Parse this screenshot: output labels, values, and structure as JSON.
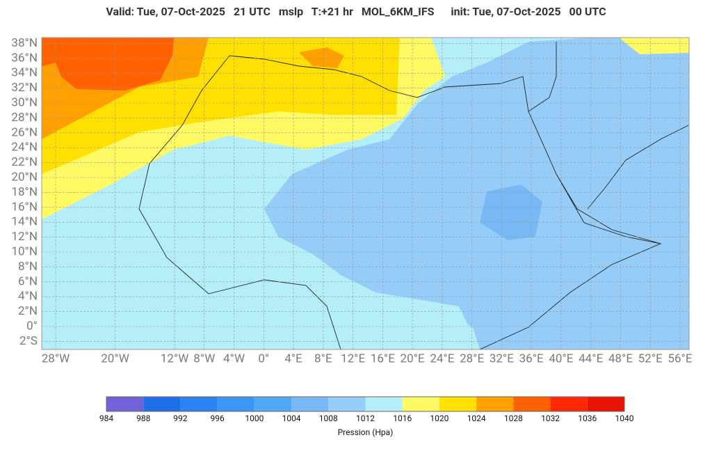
{
  "map": {
    "title": "Valid: Tue, 07-Oct-2025   21 UTC   mslp   T:+21 hr   MOL_6KM_IFS      init: Tue, 07-Oct-2025   00 UTC",
    "lat_ticks": [
      {
        "value": 38,
        "label": "38°N"
      },
      {
        "value": 36,
        "label": "36°N"
      },
      {
        "value": 34,
        "label": "34°N"
      },
      {
        "value": 32,
        "label": "32°N"
      },
      {
        "value": 30,
        "label": "30°N"
      },
      {
        "value": 28,
        "label": "28°N"
      },
      {
        "value": 26,
        "label": "26°N"
      },
      {
        "value": 24,
        "label": "24°N"
      },
      {
        "value": 22,
        "label": "22°N"
      },
      {
        "value": 20,
        "label": "20°N"
      },
      {
        "value": 18,
        "label": "18°N"
      },
      {
        "value": 16,
        "label": "16°N"
      },
      {
        "value": 14,
        "label": "14°N"
      },
      {
        "value": 12,
        "label": "12°N"
      },
      {
        "value": 10,
        "label": "10°N"
      },
      {
        "value": 8,
        "label": "8°N"
      },
      {
        "value": 6,
        "label": "6°N"
      },
      {
        "value": 4,
        "label": "4°N"
      },
      {
        "value": 2,
        "label": "2°N"
      },
      {
        "value": 0,
        "label": "0°"
      },
      {
        "value": -2,
        "label": "2°S"
      }
    ],
    "lon_ticks": [
      {
        "value": -28,
        "label": "28°W"
      },
      {
        "value": -20,
        "label": "20°W"
      },
      {
        "value": -12,
        "label": "12°W"
      },
      {
        "value": -8,
        "label": "8°W"
      },
      {
        "value": -4,
        "label": "4°W"
      },
      {
        "value": 0,
        "label": "0°"
      },
      {
        "value": 4,
        "label": "4°E"
      },
      {
        "value": 8,
        "label": "8°E"
      },
      {
        "value": 12,
        "label": "12°E"
      },
      {
        "value": 16,
        "label": "16°E"
      },
      {
        "value": 20,
        "label": "20°E"
      },
      {
        "value": 24,
        "label": "24°E"
      },
      {
        "value": 28,
        "label": "28°E"
      },
      {
        "value": 32,
        "label": "32°E"
      },
      {
        "value": 36,
        "label": "36°E"
      },
      {
        "value": 40,
        "label": "40°E"
      },
      {
        "value": 44,
        "label": "44°E"
      },
      {
        "value": 48,
        "label": "48°E"
      },
      {
        "value": 52,
        "label": "52°E"
      },
      {
        "value": 56,
        "label": "56°E"
      }
    ],
    "colorbar": {
      "title": "Pression (Hpa)",
      "levels": [
        984,
        988,
        992,
        996,
        1000,
        1004,
        1008,
        1012,
        1016,
        1020,
        1024,
        1028,
        1032,
        1036,
        1040
      ],
      "colors": [
        "#7062d8",
        "#1e6ee8",
        "#2c82f0",
        "#3c96f5",
        "#52a8f4",
        "#78b8f5",
        "#96ccf8",
        "#b4eef8",
        "#fffa64",
        "#ffe000",
        "#ffa000",
        "#ff6000",
        "#ff2800",
        "#e61400"
      ]
    }
  }
}
